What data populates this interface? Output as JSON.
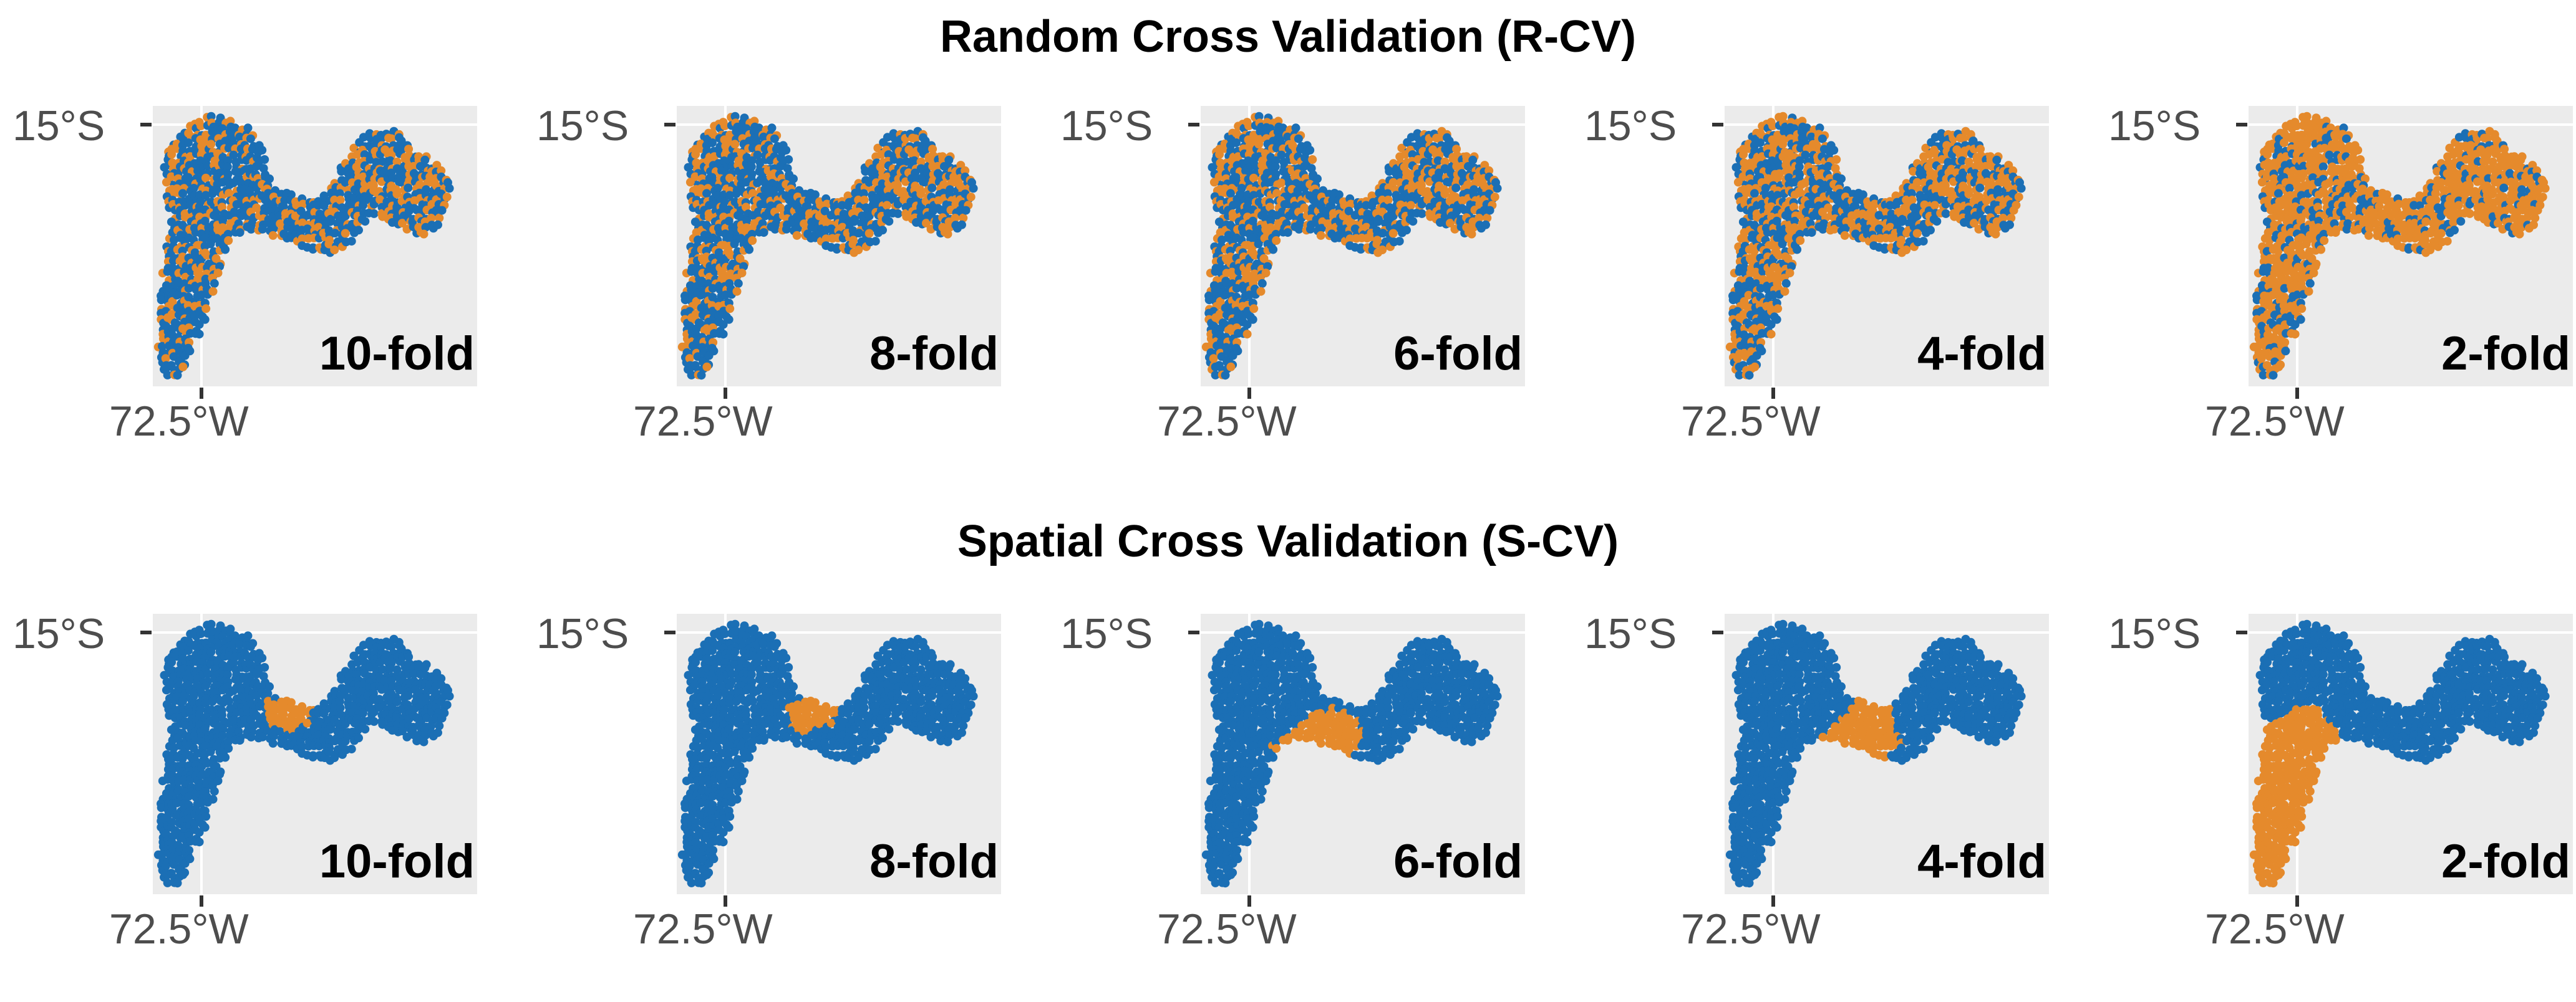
{
  "colors": {
    "train": "#1b6fb5",
    "test": "#e58a2c",
    "panel_bg": "#ebebeb",
    "grid": "#ffffff"
  },
  "rows": [
    {
      "title": "Random Cross Validation (R-CV)",
      "mode": "random",
      "panels": [
        {
          "label": "10-fold",
          "test_fraction": 0.1
        },
        {
          "label": "8-fold",
          "test_fraction": 0.125
        },
        {
          "label": "6-fold",
          "test_fraction": 0.167
        },
        {
          "label": "4-fold",
          "test_fraction": 0.25
        },
        {
          "label": "2-fold",
          "test_fraction": 0.5
        }
      ]
    },
    {
      "title": "Spatial Cross Validation (S-CV)",
      "mode": "spatial",
      "panels": [
        {
          "label": "10-fold",
          "test_fraction": 0.1
        },
        {
          "label": "8-fold",
          "test_fraction": 0.125
        },
        {
          "label": "6-fold",
          "test_fraction": 0.167
        },
        {
          "label": "4-fold",
          "test_fraction": 0.25
        },
        {
          "label": "2-fold",
          "test_fraction": 0.5
        }
      ]
    }
  ],
  "axes": {
    "y_tick": "15°S",
    "x_tick": "72.5°W"
  },
  "chart_data": [
    {
      "type": "scatter",
      "title": "Random Cross Validation (R-CV)",
      "x_tick_labels": [
        "72.5°W"
      ],
      "y_tick_labels": [
        "15°S"
      ],
      "panels": [
        "10-fold",
        "8-fold",
        "6-fold",
        "4-fold",
        "2-fold"
      ],
      "series": [
        {
          "name": "",
          "color": "#1b6fb5"
        },
        {
          "name": "",
          "color": "#e58a2c"
        }
      ]
    },
    {
      "type": "scatter",
      "title": "Spatial Cross Validation (S-CV)",
      "x_tick_labels": [
        "72.5°W"
      ],
      "y_tick_labels": [
        "15°S"
      ],
      "panels": [
        "10-fold",
        "8-fold",
        "6-fold",
        "4-fold",
        "2-fold"
      ],
      "series": [
        {
          "name": "",
          "color": "#1b6fb5"
        },
        {
          "name": "",
          "color": "#e58a2c"
        }
      ]
    }
  ]
}
